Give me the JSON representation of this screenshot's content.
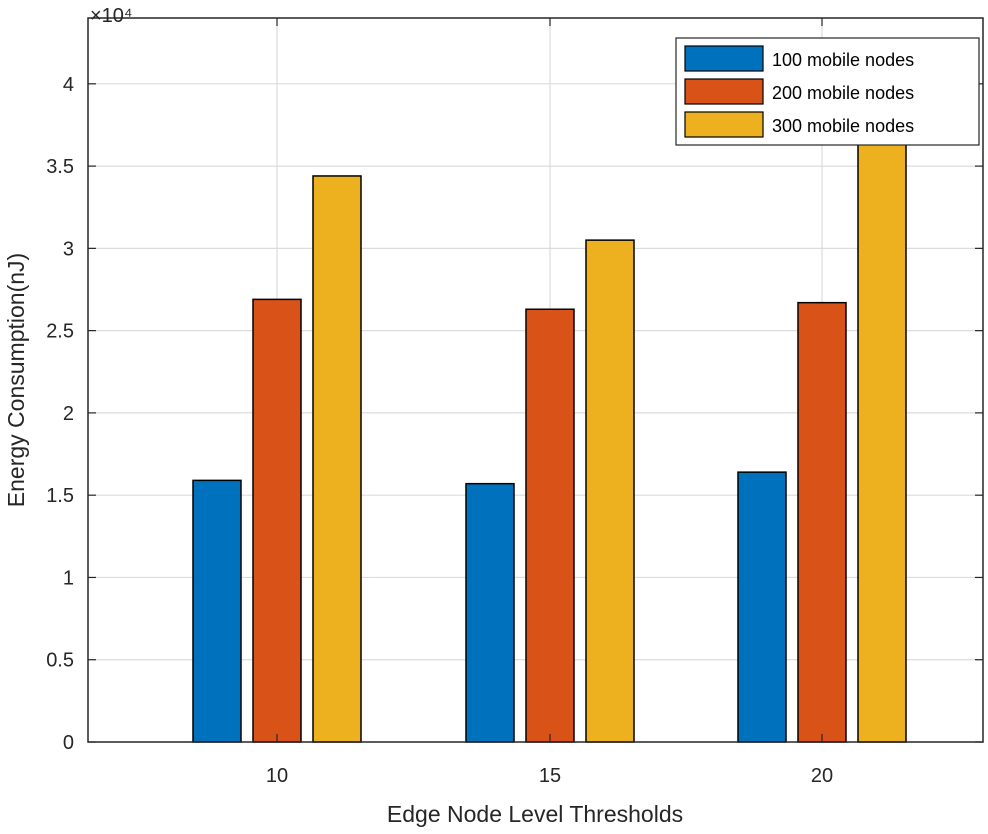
{
  "chart_data": {
    "type": "bar",
    "title": "",
    "xlabel": "Edge Node Level Thresholds",
    "ylabel": "Energy Consumption(nJ)",
    "y_exponent_label": "×10⁴",
    "y_multiplier": 10000,
    "categories": [
      "10",
      "15",
      "20"
    ],
    "series": [
      {
        "name": "100 mobile nodes",
        "color": "#0072BD",
        "values": [
          15900,
          15700,
          16400
        ]
      },
      {
        "name": "200 mobile nodes",
        "color": "#D95319",
        "values": [
          26900,
          26300,
          26700
        ]
      },
      {
        "name": "300 mobile nodes",
        "color": "#EDB120",
        "values": [
          34400,
          30500,
          36800
        ]
      }
    ],
    "ylim": [
      0,
      44000
    ],
    "yticks": [
      0,
      5000,
      10000,
      15000,
      20000,
      25000,
      30000,
      35000,
      40000
    ],
    "ytick_labels": [
      "0",
      "0.5",
      "1",
      "1.5",
      "2",
      "2.5",
      "3",
      "3.5",
      "4"
    ],
    "grid": true,
    "legend_position": "top-right"
  }
}
